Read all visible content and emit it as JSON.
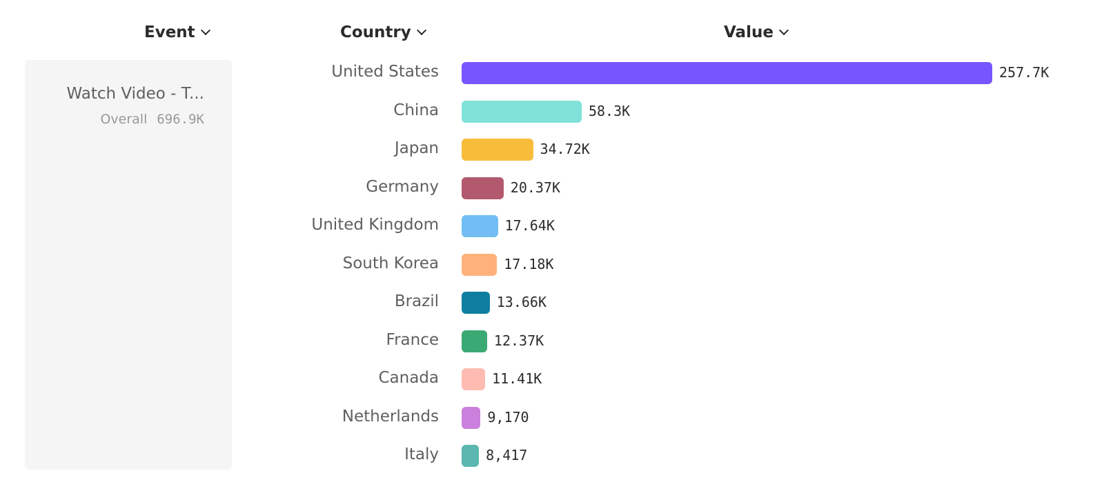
{
  "headers": {
    "event": "Event",
    "country": "Country",
    "value": "Value"
  },
  "event_panel": {
    "name": "Watch Video - T...",
    "overall_label": "Overall",
    "overall_value": "696.9K"
  },
  "chart_data": {
    "type": "bar",
    "orientation": "horizontal",
    "categories": [
      "United States",
      "China",
      "Japan",
      "Germany",
      "United Kingdom",
      "South Korea",
      "Brazil",
      "France",
      "Canada",
      "Netherlands",
      "Italy"
    ],
    "values": [
      257700,
      58300,
      34720,
      20370,
      17640,
      17180,
      13660,
      12370,
      11410,
      9170,
      8417
    ],
    "labels": [
      "257.7K",
      "58.3K",
      "34.72K",
      "20.37K",
      "17.64K",
      "17.18K",
      "13.66K",
      "12.37K",
      "11.41K",
      "9,170",
      "8,417"
    ],
    "colors": [
      "#7856FF",
      "#80E1D9",
      "#F8BC3B",
      "#B2596E",
      "#72BEF4",
      "#FFB27A",
      "#0D7EA0",
      "#3BA974",
      "#FEBBB2",
      "#CA80DC",
      "#5BB7AF"
    ],
    "grid": false
  }
}
